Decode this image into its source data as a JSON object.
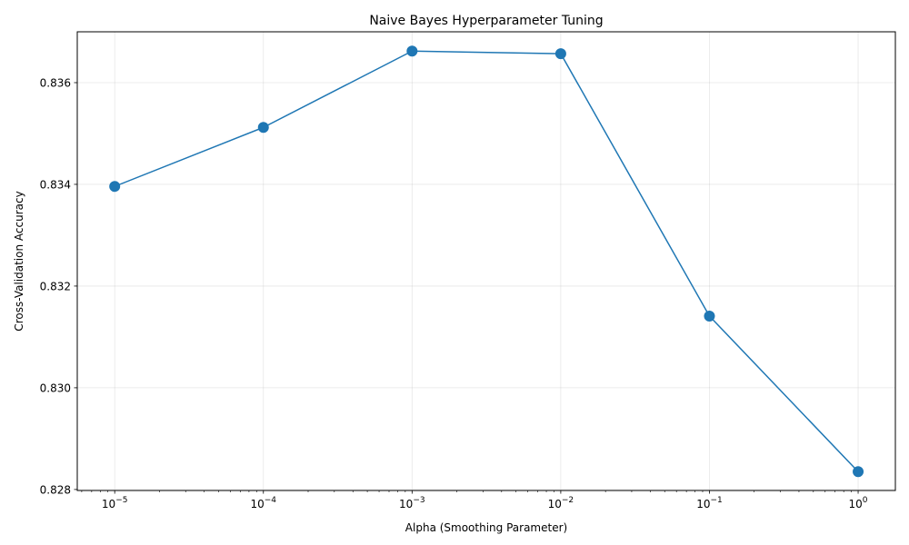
{
  "chart_data": {
    "type": "line",
    "title": "Naive Bayes Hyperparameter Tuning",
    "xlabel": "Alpha (Smoothing Parameter)",
    "ylabel": "Cross-Validation Accuracy",
    "x_scale": "log",
    "xlim": [
      5.6e-06,
      1.78
    ],
    "ylim": [
      0.82798,
      0.837
    ],
    "x_ticks": [
      {
        "value": 1e-05,
        "base": "10",
        "exp": "−5"
      },
      {
        "value": 0.0001,
        "base": "10",
        "exp": "−4"
      },
      {
        "value": 0.001,
        "base": "10",
        "exp": "−3"
      },
      {
        "value": 0.01,
        "base": "10",
        "exp": "−2"
      },
      {
        "value": 0.1,
        "base": "10",
        "exp": "−1"
      },
      {
        "value": 1,
        "base": "10",
        "exp": "0"
      }
    ],
    "y_ticks": [
      {
        "value": 0.828,
        "label": "0.828"
      },
      {
        "value": 0.83,
        "label": "0.830"
      },
      {
        "value": 0.832,
        "label": "0.832"
      },
      {
        "value": 0.834,
        "label": "0.834"
      },
      {
        "value": 0.836,
        "label": "0.836"
      }
    ],
    "grid": true,
    "series": [
      {
        "color": "#1f77b4",
        "marker": "circle",
        "x": [
          1e-05,
          0.0001,
          0.001,
          0.01,
          0.1,
          1
        ],
        "y": [
          0.83396,
          0.83512,
          0.83662,
          0.83657,
          0.83141,
          0.82835
        ]
      }
    ]
  }
}
